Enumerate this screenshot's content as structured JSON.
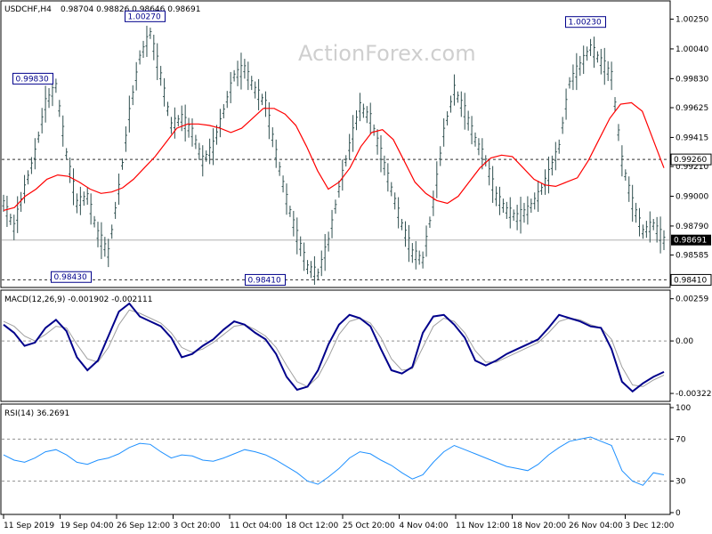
{
  "chart_data": [
    {
      "panel": "price",
      "type": "candlestick",
      "symbol_header": "USDCHF,H4",
      "ohlc_header": "0.98704 0.98826 0.98646 0.98691",
      "watermark": "ActionForex.com",
      "y_ticks": [
        "1.00250",
        "1.00040",
        "0.99830",
        "0.99625",
        "0.99415",
        "0.99210",
        "0.99000",
        "0.98790",
        "0.98585",
        "0.98410"
      ],
      "ylim": [
        0.98375,
        1.0036
      ],
      "current_price": 0.98691,
      "current_price_label": "0.98691",
      "level_lines": [
        {
          "value": 0.9926,
          "label": "0.99260",
          "style": "dashed"
        },
        {
          "value": 0.9841,
          "label": "0.98410",
          "style": "dashed"
        },
        {
          "value": 0.98691,
          "label": "",
          "style": "solid"
        }
      ],
      "annotations": [
        {
          "text": "1.00270",
          "x": "26 Sep 12:00",
          "value": 1.0027
        },
        {
          "text": "0.99830",
          "x": "17 Sep 20:00",
          "value": 0.9983
        },
        {
          "text": "0.98430",
          "x": "23 Sep 04:00",
          "value": 0.9843
        },
        {
          "text": "0.98410",
          "x": "18 Oct 08:00",
          "value": 0.9841
        },
        {
          "text": "1.00230",
          "x": "29 Nov 08:00",
          "value": 1.0023
        }
      ],
      "moving_average_path": [
        0.989,
        0.9892,
        0.99,
        0.9905,
        0.9912,
        0.9915,
        0.9914,
        0.991,
        0.9905,
        0.9902,
        0.9903,
        0.9906,
        0.9912,
        0.992,
        0.9928,
        0.9938,
        0.9948,
        0.9951,
        0.9951,
        0.995,
        0.9948,
        0.9945,
        0.9948,
        0.9955,
        0.9962,
        0.9962,
        0.9958,
        0.995,
        0.9935,
        0.9918,
        0.9905,
        0.991,
        0.992,
        0.9935,
        0.9945,
        0.9947,
        0.994,
        0.9925,
        0.991,
        0.9902,
        0.9897,
        0.9895,
        0.99,
        0.991,
        0.992,
        0.9927,
        0.9929,
        0.9928,
        0.992,
        0.9912,
        0.9908,
        0.9907,
        0.991,
        0.9913,
        0.9925,
        0.994,
        0.9955,
        0.9965,
        0.9966,
        0.996,
        0.994,
        0.992
      ],
      "price_path": [
        0.9895,
        0.9878,
        0.9905,
        0.993,
        0.9965,
        0.9978,
        0.993,
        0.9895,
        0.99,
        0.9873,
        0.986,
        0.9905,
        0.9958,
        0.9998,
        1.0015,
        0.9985,
        0.995,
        0.9955,
        0.9945,
        0.9925,
        0.9935,
        0.996,
        0.9985,
        0.999,
        0.9975,
        0.9965,
        0.993,
        0.9898,
        0.9872,
        0.985,
        0.9845,
        0.9868,
        0.9905,
        0.9935,
        0.9963,
        0.9955,
        0.993,
        0.9905,
        0.988,
        0.986,
        0.9855,
        0.9895,
        0.9945,
        0.9975,
        0.996,
        0.994,
        0.9925,
        0.99,
        0.989,
        0.9885,
        0.989,
        0.99,
        0.9915,
        0.9935,
        0.998,
        0.9992,
        1.0005,
        0.9995,
        0.9985,
        0.9925,
        0.9895,
        0.9875,
        0.988,
        0.9869
      ]
    },
    {
      "panel": "macd",
      "type": "line",
      "title": "MACD(12,26,9) -0.001902 -0.002111",
      "y_ticks": [
        "0.00259",
        "0.00",
        "-0.003221"
      ],
      "ylim": [
        -0.0036,
        0.0029
      ],
      "zero_line": 0.0,
      "series": [
        {
          "name": "MACD",
          "color": "#00008b",
          "values": [
            0.001,
            0.0005,
            -0.0003,
            -0.0001,
            0.0008,
            0.0013,
            0.0006,
            -0.001,
            -0.0018,
            -0.0012,
            0.0003,
            0.0018,
            0.0023,
            0.0015,
            0.0012,
            0.0009,
            0.0002,
            -0.001,
            -0.0008,
            -0.0003,
            0.0001,
            0.0007,
            0.0012,
            0.001,
            0.0005,
            0.0001,
            -0.0008,
            -0.0022,
            -0.003,
            -0.0028,
            -0.0018,
            -0.0002,
            0.001,
            0.0016,
            0.0014,
            0.0009,
            -0.0005,
            -0.0018,
            -0.002,
            -0.0016,
            0.0005,
            0.0015,
            0.0016,
            0.001,
            0.0002,
            -0.0012,
            -0.0015,
            -0.0012,
            -0.0008,
            -0.0005,
            -0.0002,
            0.0001,
            0.0008,
            0.0016,
            0.0014,
            0.0012,
            0.0009,
            0.0008,
            -0.0005,
            -0.0025,
            -0.0031,
            -0.0026,
            -0.0022,
            -0.0019
          ]
        },
        {
          "name": "Signal",
          "color": "#a0a0a0",
          "values": [
            0.0012,
            0.0009,
            0.0003,
            0.0,
            0.0004,
            0.0009,
            0.0008,
            -0.0002,
            -0.0011,
            -0.0013,
            -0.0004,
            0.001,
            0.0019,
            0.0017,
            0.0014,
            0.0011,
            0.0005,
            -0.0004,
            -0.0007,
            -0.0005,
            -0.0001,
            0.0004,
            0.0009,
            0.001,
            0.0007,
            0.0003,
            -0.0004,
            -0.0015,
            -0.0025,
            -0.0028,
            -0.0022,
            -0.001,
            0.0004,
            0.0012,
            0.0014,
            0.0011,
            0.0002,
            -0.0011,
            -0.0018,
            -0.0017,
            -0.0004,
            0.0009,
            0.0014,
            0.0012,
            0.0005,
            -0.0006,
            -0.0013,
            -0.0013,
            -0.001,
            -0.0007,
            -0.0004,
            -0.0001,
            0.0005,
            0.0012,
            0.0014,
            0.0013,
            0.001,
            0.0008,
            0.0001,
            -0.0016,
            -0.0027,
            -0.0028,
            -0.0024,
            -0.0021
          ]
        }
      ]
    },
    {
      "panel": "rsi",
      "type": "line",
      "title": "RSI(14) 36.2691",
      "y_ticks": [
        "100",
        "70",
        "30",
        "0"
      ],
      "ylim": [
        0,
        100
      ],
      "level_lines": [
        70,
        30
      ],
      "series": [
        {
          "name": "RSI",
          "color": "#1e90ff",
          "values": [
            55,
            50,
            48,
            52,
            58,
            60,
            55,
            48,
            46,
            50,
            52,
            56,
            62,
            66,
            65,
            58,
            52,
            55,
            54,
            50,
            49,
            52,
            56,
            60,
            58,
            55,
            50,
            44,
            38,
            30,
            27,
            34,
            42,
            52,
            58,
            56,
            50,
            45,
            38,
            32,
            36,
            48,
            58,
            64,
            60,
            56,
            52,
            48,
            44,
            42,
            40,
            46,
            55,
            62,
            68,
            70,
            72,
            68,
            64,
            40,
            30,
            26,
            38,
            36
          ]
        }
      ]
    }
  ],
  "x_axis_labels": [
    "11 Sep 2019",
    "19 Sep 04:00",
    "26 Sep 12:00",
    "3 Oct 20:00",
    "11 Oct 04:00",
    "18 Oct 12:00",
    "25 Oct 20:00",
    "4 Nov 04:00",
    "11 Nov 12:00",
    "18 Nov 20:00",
    "26 Nov 04:00",
    "3 Dec 12:00"
  ],
  "colors": {
    "price": "#2f4f4f",
    "moving_average": "#ff0000",
    "macd": "#00008b",
    "signal": "#a0a0a0",
    "rsi": "#1e90ff",
    "grid_dash": "#606060",
    "annotation_text": "#00008b"
  }
}
